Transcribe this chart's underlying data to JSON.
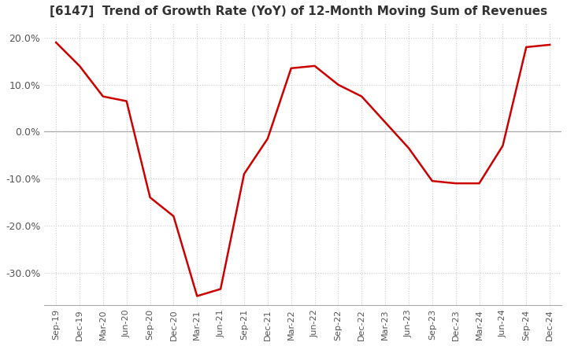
{
  "title": "[6147]  Trend of Growth Rate (YoY) of 12-Month Moving Sum of Revenues",
  "title_fontsize": 11,
  "line_color": "#cc0000",
  "background_color": "#ffffff",
  "grid_color": "#cccccc",
  "ylim": [
    -37,
    23
  ],
  "yticks": [
    20,
    10,
    0,
    -10,
    -20,
    -30
  ],
  "ytick_labels": [
    "20.0%",
    "10.0%",
    "0.0%",
    "-10.0%",
    "-20.0%",
    "-30.0%"
  ],
  "x_labels": [
    "Sep-19",
    "Dec-19",
    "Mar-20",
    "Jun-20",
    "Sep-20",
    "Dec-20",
    "Mar-21",
    "Jun-21",
    "Sep-21",
    "Dec-21",
    "Mar-22",
    "Jun-22",
    "Sep-22",
    "Dec-22",
    "Mar-23",
    "Jun-23",
    "Sep-23",
    "Dec-23",
    "Mar-24",
    "Jun-24",
    "Sep-24",
    "Dec-24"
  ],
  "y_values": [
    19.0,
    14.0,
    7.5,
    6.5,
    -14.0,
    -18.0,
    -35.0,
    -33.5,
    -9.0,
    -1.5,
    13.5,
    14.0,
    10.0,
    7.5,
    2.0,
    -3.5,
    -10.5,
    -11.0,
    -11.0,
    -3.0,
    18.0,
    18.5
  ]
}
